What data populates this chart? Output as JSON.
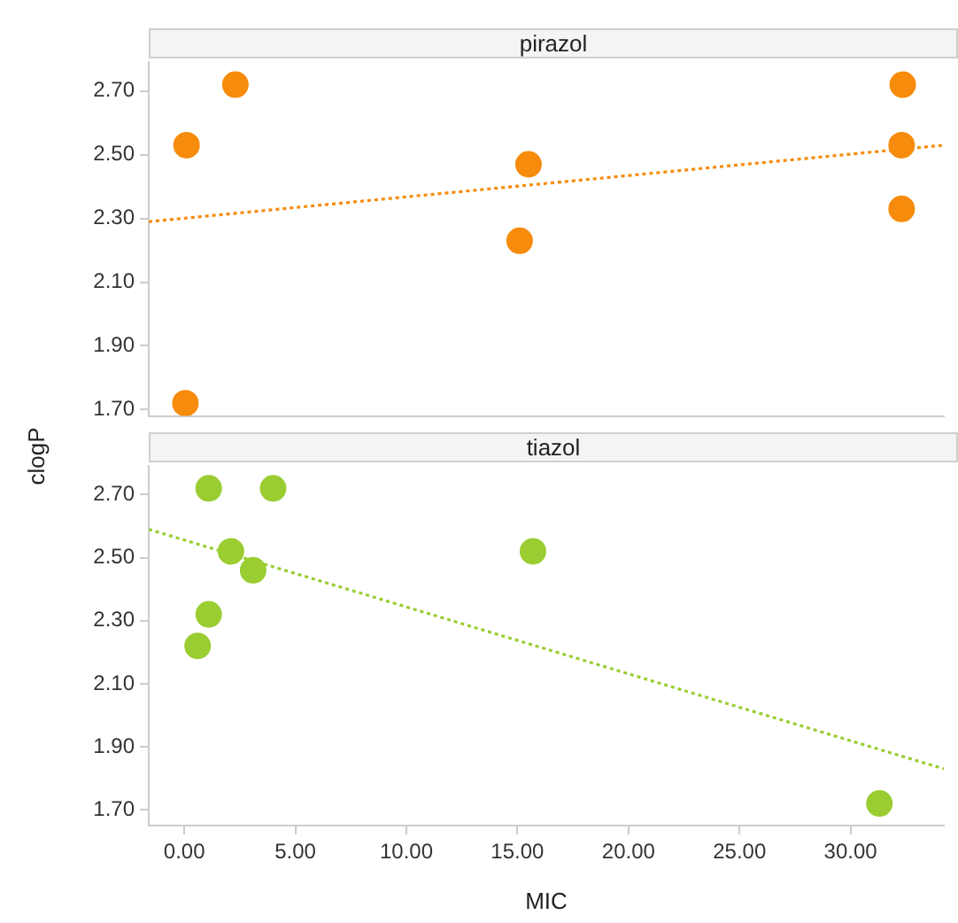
{
  "chart_data": [
    {
      "type": "scatter",
      "title": "pirazol",
      "xlim": [
        -1.6,
        34.2
      ],
      "ylim": [
        1.68,
        2.79
      ],
      "tick_labels": "y",
      "yticks": [
        {
          "value": 1.7,
          "label": "1.70"
        },
        {
          "value": 1.9,
          "label": "1.90"
        },
        {
          "value": 2.1,
          "label": "2.10"
        },
        {
          "value": 2.3,
          "label": "2.30"
        },
        {
          "value": 2.5,
          "label": "2.50"
        },
        {
          "value": 2.7,
          "label": "2.70"
        }
      ],
      "grid": false,
      "legend": false,
      "series": [
        {
          "type": "scatter",
          "marker": "circle",
          "color": "#f68b0c",
          "x": [
            0.1,
            2.3,
            0.05,
            15.5,
            15.1,
            32.35,
            32.3,
            32.3
          ],
          "values": [
            2.53,
            2.72,
            1.72,
            2.47,
            2.23,
            2.72,
            2.53,
            2.33
          ]
        },
        {
          "type": "line",
          "color": "#f68b0c",
          "line_style": "dotted",
          "x": [
            -1.6,
            34.2
          ],
          "values": [
            2.29,
            2.53
          ]
        }
      ]
    },
    {
      "type": "scatter",
      "title": "tiazol",
      "xlabel": "MIC",
      "ylabel": "clogP",
      "xlim": [
        -1.6,
        34.2
      ],
      "ylim": [
        1.65,
        2.79
      ],
      "xticks": [
        {
          "value": 0,
          "label": "0.00"
        },
        {
          "value": 5,
          "label": "5.00"
        },
        {
          "value": 10,
          "label": "10.00"
        },
        {
          "value": 15,
          "label": "15.00"
        },
        {
          "value": 20,
          "label": "20.00"
        },
        {
          "value": 25,
          "label": "25.00"
        },
        {
          "value": 30,
          "label": "30.00"
        }
      ],
      "yticks": [
        {
          "value": 1.7,
          "label": "1.70"
        },
        {
          "value": 1.9,
          "label": "1.90"
        },
        {
          "value": 2.1,
          "label": "2.10"
        },
        {
          "value": 2.3,
          "label": "2.30"
        },
        {
          "value": 2.5,
          "label": "2.50"
        },
        {
          "value": 2.7,
          "label": "2.70"
        }
      ],
      "grid": false,
      "legend": false,
      "series": [
        {
          "type": "scatter",
          "marker": "circle",
          "color": "#9acd32",
          "x": [
            1.1,
            4.0,
            2.1,
            3.1,
            1.1,
            0.6,
            15.7,
            31.3
          ],
          "values": [
            2.72,
            2.72,
            2.52,
            2.46,
            2.32,
            2.22,
            2.52,
            1.72
          ]
        },
        {
          "type": "line",
          "color": "#9acd32",
          "line_style": "dotted",
          "x": [
            -1.6,
            34.2
          ],
          "values": [
            2.59,
            1.83
          ]
        }
      ]
    }
  ]
}
